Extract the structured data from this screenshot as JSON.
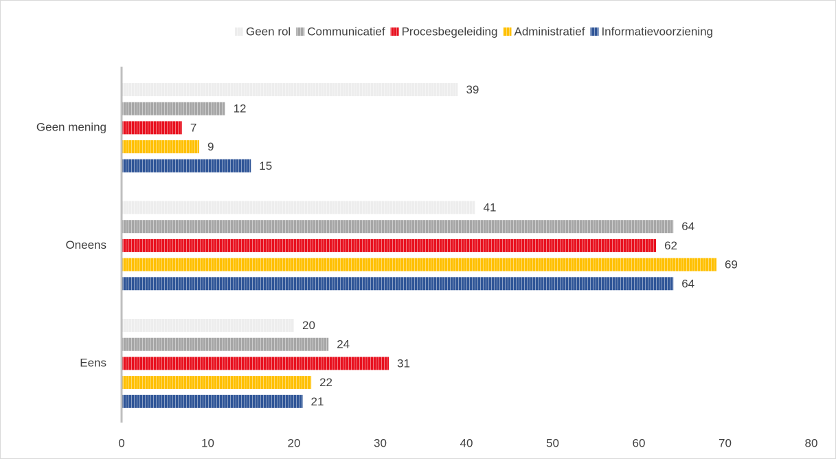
{
  "chart_data": {
    "type": "bar",
    "orientation": "horizontal",
    "categories": [
      "Geen mening",
      "Oneens",
      "Eens"
    ],
    "series": [
      {
        "name": "Geen rol",
        "color": "#ededed",
        "values": [
          39,
          41,
          20
        ]
      },
      {
        "name": "Communicatief",
        "color": "#a6a6a6",
        "values": [
          12,
          64,
          24
        ]
      },
      {
        "name": "Procesbegeleiding",
        "color": "#e8111f",
        "values": [
          7,
          62,
          31
        ]
      },
      {
        "name": "Administratief",
        "color": "#ffc000",
        "values": [
          9,
          69,
          22
        ]
      },
      {
        "name": "Informatievoorziening",
        "color": "#2f5597",
        "values": [
          15,
          64,
          21
        ]
      }
    ],
    "xlim": [
      0,
      80
    ],
    "xticks": [
      0,
      10,
      20,
      30,
      40,
      50,
      60,
      70,
      80
    ],
    "legend": "top",
    "grid": false,
    "pattern": "vertical-stripes"
  }
}
